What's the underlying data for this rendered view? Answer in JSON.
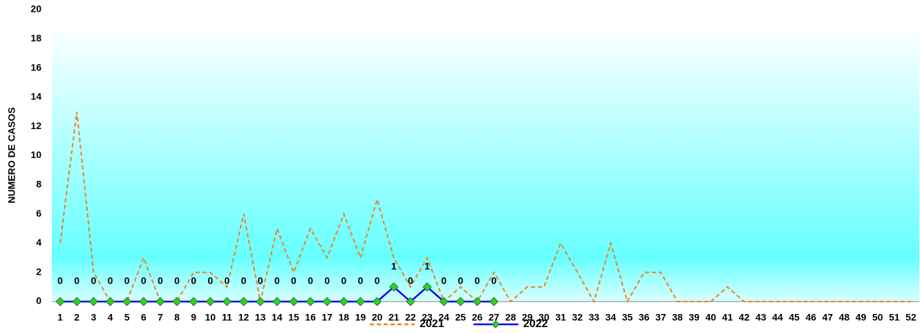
{
  "chart_data": {
    "type": "line",
    "ylabel": "NUMERO DE CASOS",
    "categories": [
      "1",
      "2",
      "3",
      "4",
      "5",
      "6",
      "7",
      "8",
      "9",
      "10",
      "11",
      "12",
      "13",
      "14",
      "15",
      "16",
      "17",
      "18",
      "19",
      "20",
      "21",
      "22",
      "23",
      "24",
      "25",
      "26",
      "27",
      "28",
      "29",
      "30",
      "31",
      "32",
      "33",
      "34",
      "35",
      "36",
      "37",
      "38",
      "39",
      "40",
      "41",
      "42",
      "43",
      "44",
      "45",
      "46",
      "47",
      "48",
      "49",
      "50",
      "51",
      "52"
    ],
    "series": [
      {
        "name": "2021",
        "color": "#f07f1e",
        "dashed": true,
        "markers": false,
        "data_labels": false,
        "values": [
          4,
          13,
          2,
          0,
          0,
          3,
          0,
          0,
          2,
          2,
          1,
          6,
          0,
          5,
          2,
          5,
          3,
          6,
          3,
          7,
          3,
          1,
          3,
          0,
          1,
          0,
          2,
          0,
          1,
          1,
          4,
          2,
          0,
          4,
          0,
          2,
          2,
          0,
          0,
          0,
          1,
          0,
          0,
          0,
          0,
          0,
          0,
          0,
          0,
          0,
          0,
          0
        ]
      },
      {
        "name": "2022",
        "color": "#0000ff",
        "marker_color": "#33cc33",
        "dashed": false,
        "markers": true,
        "data_labels": true,
        "values": [
          0,
          0,
          0,
          0,
          0,
          0,
          0,
          0,
          0,
          0,
          0,
          0,
          0,
          0,
          0,
          0,
          0,
          0,
          0,
          0,
          1,
          0,
          1,
          0,
          0,
          0,
          0,
          null,
          null,
          null,
          null,
          null,
          null,
          null,
          null,
          null,
          null,
          null,
          null,
          null,
          null,
          null,
          null,
          null,
          null,
          null,
          null,
          null,
          null,
          null,
          null,
          null
        ]
      }
    ],
    "ylim": [
      0,
      20
    ],
    "yticks": [
      0,
      2,
      4,
      6,
      8,
      10,
      12,
      14,
      16,
      18,
      20
    ],
    "grid": false
  }
}
